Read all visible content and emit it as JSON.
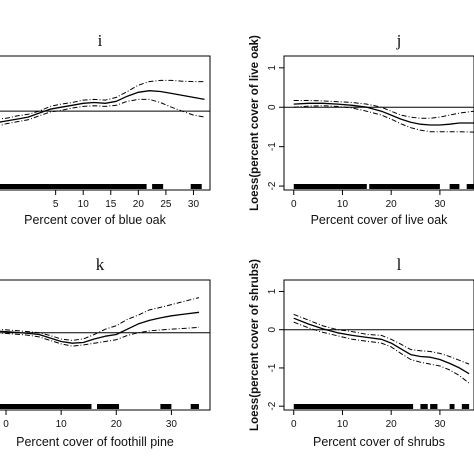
{
  "chart_data": [
    {
      "type": "line",
      "panel_label": "i",
      "title": "i",
      "xlabel": "Percent cover of blue oak",
      "ylabel": "",
      "xlim": [
        -6,
        33
      ],
      "ylim": [
        -2,
        1.4
      ],
      "xticks": [
        5,
        10,
        15,
        20,
        25,
        30
      ],
      "xtick_labels": [
        "5",
        "10",
        "15",
        "20",
        "25",
        "30"
      ],
      "yticks": [],
      "reference_line": 0,
      "rug": [
        [
          -6,
          21.5
        ],
        [
          22.5,
          24.5
        ],
        [
          29.5,
          31.5
        ]
      ],
      "series": [
        {
          "style": "solid",
          "x": [
            -6,
            -4,
            -2,
            0,
            2,
            4,
            6,
            8,
            10,
            12,
            14,
            16,
            18,
            20,
            22,
            24,
            26,
            28,
            30,
            32
          ],
          "values": [
            -0.3,
            -0.25,
            -0.2,
            -0.15,
            -0.05,
            0.05,
            0.1,
            0.15,
            0.2,
            0.22,
            0.2,
            0.25,
            0.38,
            0.48,
            0.52,
            0.5,
            0.45,
            0.4,
            0.35,
            0.3
          ]
        },
        {
          "style": "dashed",
          "x": [
            -6,
            -4,
            -2,
            0,
            2,
            4,
            6,
            8,
            10,
            12,
            14,
            16,
            18,
            20,
            22,
            24,
            26,
            28,
            30,
            32
          ],
          "values": [
            -0.2,
            -0.18,
            -0.12,
            -0.08,
            0.0,
            0.12,
            0.18,
            0.22,
            0.28,
            0.3,
            0.28,
            0.35,
            0.5,
            0.66,
            0.75,
            0.78,
            0.78,
            0.76,
            0.75,
            0.75
          ]
        },
        {
          "style": "dashed",
          "x": [
            -6,
            -4,
            -2,
            0,
            2,
            4,
            6,
            8,
            10,
            12,
            14,
            16,
            18,
            20,
            22,
            24,
            26,
            28,
            30,
            32
          ],
          "values": [
            -0.4,
            -0.32,
            -0.27,
            -0.22,
            -0.12,
            -0.02,
            0.02,
            0.08,
            0.12,
            0.14,
            0.12,
            0.15,
            0.25,
            0.3,
            0.3,
            0.22,
            0.1,
            0.0,
            -0.1,
            -0.15
          ]
        }
      ]
    },
    {
      "type": "line",
      "panel_label": "j",
      "title": "j",
      "xlabel": "Percent cover of live oak",
      "ylabel": "Loess(percent cover of live oak)",
      "xlim": [
        -2,
        37
      ],
      "ylim": [
        -2.1,
        1.3
      ],
      "xticks": [
        0,
        10,
        20,
        30
      ],
      "xtick_labels": [
        "0",
        "10",
        "20",
        "30"
      ],
      "yticks": [
        -2,
        -1,
        0,
        1
      ],
      "ytick_labels": [
        "-2",
        "-1",
        "0",
        "1"
      ],
      "reference_line": 0,
      "rug": [
        [
          0,
          15
        ],
        [
          15.5,
          30
        ],
        [
          32,
          34
        ],
        [
          35.5,
          37
        ]
      ],
      "series": [
        {
          "style": "solid",
          "x": [
            0,
            3,
            6,
            9,
            12,
            15,
            18,
            20,
            22,
            24,
            26,
            28,
            30,
            32,
            34,
            37
          ],
          "values": [
            0.08,
            0.1,
            0.1,
            0.08,
            0.05,
            0.0,
            -0.1,
            -0.2,
            -0.3,
            -0.38,
            -0.43,
            -0.45,
            -0.45,
            -0.43,
            -0.4,
            -0.4
          ]
        },
        {
          "style": "dashed",
          "x": [
            0,
            3,
            6,
            9,
            12,
            15,
            18,
            20,
            22,
            24,
            26,
            28,
            30,
            32,
            34,
            37
          ],
          "values": [
            0.17,
            0.17,
            0.16,
            0.14,
            0.12,
            0.08,
            0.0,
            -0.1,
            -0.2,
            -0.25,
            -0.28,
            -0.28,
            -0.25,
            -0.2,
            -0.15,
            -0.1
          ]
        },
        {
          "style": "dashed",
          "x": [
            0,
            3,
            6,
            9,
            12,
            15,
            18,
            20,
            22,
            24,
            26,
            28,
            30,
            32,
            34,
            37
          ],
          "values": [
            0.0,
            0.03,
            0.04,
            0.02,
            -0.02,
            -0.1,
            -0.2,
            -0.3,
            -0.42,
            -0.52,
            -0.58,
            -0.62,
            -0.62,
            -0.62,
            -0.62,
            -0.63
          ]
        }
      ]
    },
    {
      "type": "line",
      "panel_label": "k",
      "title": "k",
      "xlabel": "Percent cover of foothill pine",
      "ylabel": "",
      "xlim": [
        -2,
        37
      ],
      "ylim": [
        -2.2,
        1.5
      ],
      "xticks": [
        0,
        10,
        20,
        30
      ],
      "xtick_labels": [
        "0",
        "10",
        "20",
        "30"
      ],
      "yticks": [],
      "reference_line": 0,
      "rug": [
        [
          -2,
          15.5
        ],
        [
          16.5,
          20.5
        ],
        [
          28,
          30
        ],
        [
          33.5,
          35
        ]
      ],
      "series": [
        {
          "style": "solid",
          "x": [
            -2,
            1,
            4,
            6,
            8,
            10,
            12,
            14,
            16,
            18,
            20,
            22,
            24,
            26,
            28,
            30,
            32,
            35
          ],
          "values": [
            0.05,
            0.02,
            -0.02,
            -0.05,
            -0.15,
            -0.25,
            -0.3,
            -0.28,
            -0.18,
            -0.1,
            -0.05,
            0.1,
            0.25,
            0.35,
            0.42,
            0.48,
            0.52,
            0.58
          ]
        },
        {
          "style": "dashed",
          "x": [
            -2,
            1,
            4,
            6,
            8,
            10,
            12,
            14,
            16,
            18,
            20,
            22,
            24,
            26,
            28,
            30,
            32,
            35
          ],
          "values": [
            0.1,
            0.07,
            0.03,
            0.0,
            -0.08,
            -0.18,
            -0.22,
            -0.18,
            -0.05,
            0.1,
            0.2,
            0.38,
            0.5,
            0.65,
            0.72,
            0.8,
            0.88,
            1.0
          ]
        },
        {
          "style": "dashed",
          "x": [
            -2,
            1,
            4,
            6,
            8,
            10,
            12,
            14,
            16,
            18,
            20,
            22,
            24,
            26,
            28,
            30,
            32,
            35
          ],
          "values": [
            0.0,
            -0.03,
            -0.07,
            -0.12,
            -0.22,
            -0.32,
            -0.38,
            -0.35,
            -0.3,
            -0.25,
            -0.2,
            -0.08,
            0.0,
            0.05,
            0.08,
            0.1,
            0.12,
            0.15
          ]
        }
      ]
    },
    {
      "type": "line",
      "panel_label": "l",
      "title": "l",
      "xlabel": "Percent cover of shrubs",
      "ylabel": "Loess(percent cover of shrubs)",
      "xlim": [
        -2,
        37
      ],
      "ylim": [
        -2.1,
        1.3
      ],
      "xticks": [
        0,
        10,
        20,
        30
      ],
      "xtick_labels": [
        "0",
        "10",
        "20",
        "30"
      ],
      "yticks": [
        -2,
        -1,
        0,
        1
      ],
      "ytick_labels": [
        "-2",
        "-1",
        "0",
        "1"
      ],
      "reference_line": 0,
      "rug": [
        [
          0,
          24.5
        ],
        [
          26,
          27.5
        ],
        [
          28,
          29.5
        ],
        [
          32,
          33
        ],
        [
          34.5,
          36
        ]
      ],
      "series": [
        {
          "style": "solid",
          "x": [
            0,
            3,
            6,
            9,
            12,
            15,
            18,
            20,
            22,
            24,
            26,
            28,
            30,
            32,
            34,
            36
          ],
          "values": [
            0.3,
            0.15,
            0.02,
            -0.08,
            -0.15,
            -0.2,
            -0.25,
            -0.35,
            -0.5,
            -0.65,
            -0.7,
            -0.72,
            -0.78,
            -0.88,
            -1.0,
            -1.15
          ]
        },
        {
          "style": "dashed",
          "x": [
            0,
            3,
            6,
            9,
            12,
            15,
            18,
            20,
            22,
            24,
            26,
            28,
            30,
            32,
            34,
            36
          ],
          "values": [
            0.4,
            0.25,
            0.1,
            0.0,
            -0.05,
            -0.12,
            -0.15,
            -0.25,
            -0.38,
            -0.52,
            -0.55,
            -0.57,
            -0.62,
            -0.7,
            -0.8,
            -0.9
          ]
        },
        {
          "style": "dashed",
          "x": [
            0,
            3,
            6,
            9,
            12,
            15,
            18,
            20,
            22,
            24,
            26,
            28,
            30,
            32,
            34,
            36
          ],
          "values": [
            0.2,
            0.05,
            -0.07,
            -0.16,
            -0.25,
            -0.3,
            -0.35,
            -0.45,
            -0.62,
            -0.78,
            -0.85,
            -0.9,
            -0.95,
            -1.05,
            -1.2,
            -1.4
          ]
        }
      ]
    }
  ]
}
